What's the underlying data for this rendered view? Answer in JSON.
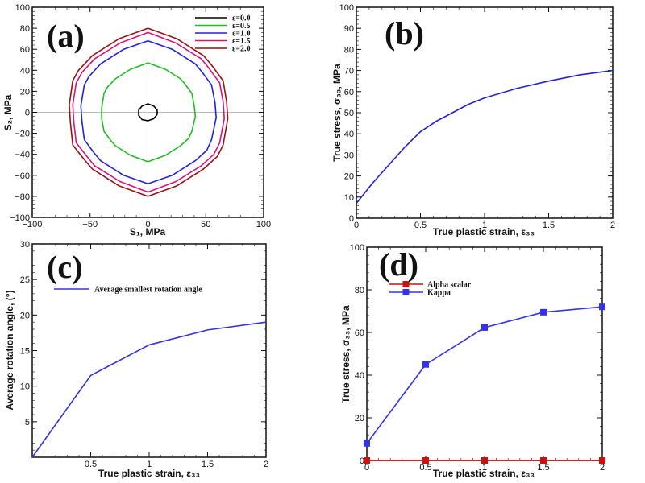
{
  "chart_data": [
    {
      "type": "line",
      "panel_label": "(a)",
      "xlabel": "S₁, MPa",
      "ylabel": "S₂, MPa",
      "xlim": [
        -100,
        100
      ],
      "ylim": [
        -100,
        100
      ],
      "xticks": [
        -100,
        -50,
        0,
        50,
        100
      ],
      "yticks": [
        -100,
        -80,
        -60,
        -40,
        -20,
        0,
        20,
        40,
        60,
        80,
        100
      ],
      "zero_lines": true,
      "legend_position": "top-right",
      "closed_curves": true,
      "series": [
        {
          "name": "ε=0.0",
          "color": "#000000",
          "points": [
            [
              0,
              8
            ],
            [
              -5,
              6
            ],
            [
              -8,
              2
            ],
            [
              -8,
              -3
            ],
            [
              -5,
              -7
            ],
            [
              0,
              -8
            ],
            [
              5,
              -6
            ],
            [
              8,
              -2
            ],
            [
              8,
              2
            ],
            [
              5,
              6
            ]
          ]
        },
        {
          "name": "ε=0.5",
          "color": "#22bb22",
          "points": [
            [
              0,
              47
            ],
            [
              -15,
              41
            ],
            [
              -28,
              32
            ],
            [
              -35,
              24
            ],
            [
              -38,
              18
            ],
            [
              -40,
              4
            ],
            [
              -40,
              -6
            ],
            [
              -38,
              -18
            ],
            [
              -32,
              -27
            ],
            [
              -28,
              -32
            ],
            [
              -15,
              -41
            ],
            [
              0,
              -47
            ],
            [
              15,
              -41
            ],
            [
              28,
              -32
            ],
            [
              35,
              -25
            ],
            [
              38,
              -18
            ],
            [
              41,
              -4
            ],
            [
              40,
              6
            ],
            [
              38,
              18
            ],
            [
              32,
              27
            ],
            [
              28,
              32
            ],
            [
              15,
              41
            ]
          ]
        },
        {
          "name": "ε=1.0",
          "color": "#2222dd",
          "points": [
            [
              0,
              68
            ],
            [
              -21,
              60
            ],
            [
              -41,
              46
            ],
            [
              -51,
              34
            ],
            [
              -55,
              26
            ],
            [
              -58,
              6
            ],
            [
              -57,
              -9
            ],
            [
              -55,
              -26
            ],
            [
              -47,
              -38
            ],
            [
              -41,
              -46
            ],
            [
              -21,
              -60
            ],
            [
              0,
              -68
            ],
            [
              21,
              -60
            ],
            [
              41,
              -46
            ],
            [
              51,
              -36
            ],
            [
              55,
              -26
            ],
            [
              59,
              -5
            ],
            [
              58,
              9
            ],
            [
              55,
              26
            ],
            [
              47,
              38
            ],
            [
              41,
              46
            ],
            [
              21,
              60
            ]
          ]
        },
        {
          "name": "ε=1.5",
          "color": "#dd1177",
          "points": [
            [
              0,
              76
            ],
            [
              -24,
              66
            ],
            [
              -46,
              51
            ],
            [
              -57,
              38
            ],
            [
              -62,
              28
            ],
            [
              -65,
              7
            ],
            [
              -64,
              -10
            ],
            [
              -62,
              -29
            ],
            [
              -52,
              -43
            ],
            [
              -46,
              -51
            ],
            [
              -24,
              -66
            ],
            [
              0,
              -76
            ],
            [
              24,
              -66
            ],
            [
              46,
              -51
            ],
            [
              57,
              -40
            ],
            [
              62,
              -29
            ],
            [
              66,
              -6
            ],
            [
              65,
              10
            ],
            [
              62,
              28
            ],
            [
              52,
              43
            ],
            [
              46,
              51
            ],
            [
              24,
              66
            ]
          ]
        },
        {
          "name": "ε=2.0",
          "color": "#991111",
          "points": [
            [
              0,
              80
            ],
            [
              -25,
              70
            ],
            [
              -48,
              54
            ],
            [
              -60,
              40
            ],
            [
              -65,
              30
            ],
            [
              -68,
              7
            ],
            [
              -67,
              -10
            ],
            [
              -65,
              -31
            ],
            [
              -55,
              -45
            ],
            [
              -48,
              -54
            ],
            [
              -25,
              -70
            ],
            [
              0,
              -80
            ],
            [
              25,
              -70
            ],
            [
              48,
              -54
            ],
            [
              60,
              -42
            ],
            [
              65,
              -31
            ],
            [
              69,
              -6
            ],
            [
              68,
              10
            ],
            [
              65,
              30
            ],
            [
              55,
              45
            ],
            [
              48,
              54
            ],
            [
              25,
              70
            ]
          ]
        }
      ]
    },
    {
      "type": "line",
      "panel_label": "(b)",
      "xlabel": "True plastic strain, ε₃₃",
      "ylabel": "True stress, σ₃₃, MPa",
      "xlim": [
        0,
        2
      ],
      "ylim": [
        0,
        100
      ],
      "xticks": [
        0,
        0.5,
        1,
        1.5,
        2
      ],
      "yticks": [
        0,
        10,
        20,
        30,
        40,
        50,
        60,
        70,
        80,
        90,
        100
      ],
      "series": [
        {
          "color": "#2222cc",
          "points": [
            [
              0,
              7
            ],
            [
              0.125,
              16.5
            ],
            [
              0.25,
              25
            ],
            [
              0.375,
              33.5
            ],
            [
              0.5,
              41
            ],
            [
              0.625,
              46
            ],
            [
              0.75,
              50
            ],
            [
              0.875,
              54
            ],
            [
              1,
              57
            ],
            [
              1.25,
              61.5
            ],
            [
              1.5,
              65
            ],
            [
              1.75,
              68
            ],
            [
              2,
              70
            ]
          ]
        }
      ]
    },
    {
      "type": "line",
      "panel_label": "(c)",
      "xlabel": "True plastic strain, ε₃₃",
      "ylabel": "Average rotation angle, (°)",
      "xlim": [
        0,
        2
      ],
      "ylim": [
        0,
        30
      ],
      "xticks": [
        0.5,
        1,
        1.5,
        2
      ],
      "yticks": [
        5,
        10,
        15,
        20,
        25,
        30
      ],
      "legend_position": "top-left",
      "series": [
        {
          "name": "Average smallest rotation angle",
          "color": "#3333dd",
          "points": [
            [
              0,
              0
            ],
            [
              0.5,
              11.5
            ],
            [
              1,
              15.8
            ],
            [
              1.5,
              17.9
            ],
            [
              2,
              19
            ]
          ]
        }
      ]
    },
    {
      "type": "line",
      "panel_label": "(d)",
      "xlabel": "True plastic strain, ε₃₃",
      "ylabel": "True stress, σ₃₃, MPa",
      "xlim": [
        0,
        2
      ],
      "ylim": [
        0,
        100
      ],
      "xticks": [
        0,
        0.5,
        1,
        1.5,
        2
      ],
      "yticks": [
        0,
        20,
        40,
        60,
        80,
        100
      ],
      "legend_position": "top-left",
      "markers": "square",
      "series": [
        {
          "name": "Alpha scalar",
          "color": "#cc1111",
          "points": [
            [
              0,
              0
            ],
            [
              0.5,
              0
            ],
            [
              1,
              0
            ],
            [
              1.5,
              0
            ],
            [
              2,
              0
            ]
          ]
        },
        {
          "name": "Kappa",
          "color": "#3333ee",
          "points": [
            [
              0,
              8
            ],
            [
              0.5,
              45
            ],
            [
              1,
              62.3
            ],
            [
              1.5,
              69.5
            ],
            [
              2,
              72
            ]
          ]
        }
      ]
    }
  ]
}
